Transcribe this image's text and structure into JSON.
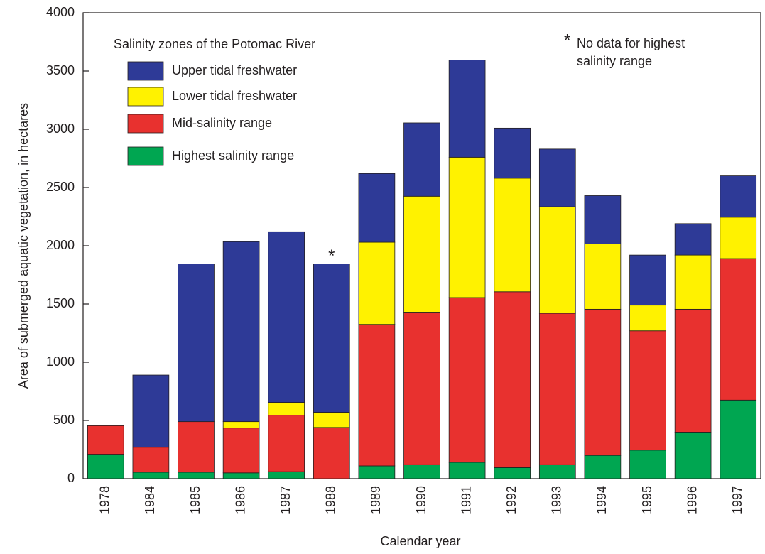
{
  "chart_data": {
    "type": "stacked_bar",
    "x_label": "Calendar year",
    "y_label": "Area of submerged aquatic vegetation, in hectares",
    "legend_title": "Salinity zones of the Potomac River",
    "note_marker": "*",
    "note": [
      "No data for highest",
      "salinity range"
    ],
    "categories": [
      "1978",
      "1984",
      "1985",
      "1986",
      "1987",
      "1988",
      "1989",
      "1990",
      "1991",
      "1992",
      "1993",
      "1994",
      "1995",
      "1996",
      "1997"
    ],
    "series": [
      {
        "name": "Highest salinity range",
        "color": "#00a651",
        "values": [
          210,
          55,
          55,
          50,
          60,
          null,
          110,
          120,
          140,
          95,
          120,
          200,
          245,
          400,
          675
        ]
      },
      {
        "name": "Mid-salinity range",
        "color": "#e8312f",
        "values": [
          245,
          215,
          435,
          385,
          485,
          440,
          1215,
          1310,
          1415,
          1510,
          1300,
          1255,
          1025,
          1055,
          1215
        ]
      },
      {
        "name": "Lower tidal freshwater",
        "color": "#fff200",
        "values": [
          0,
          0,
          0,
          55,
          110,
          130,
          705,
          995,
          1205,
          975,
          915,
          560,
          220,
          465,
          355
        ]
      },
      {
        "name": "Upper tidal freshwater",
        "color": "#2e3a97",
        "values": [
          0,
          620,
          1355,
          1545,
          1465,
          1275,
          590,
          630,
          835,
          430,
          495,
          415,
          430,
          270,
          355
        ]
      }
    ],
    "note_category": 5,
    "ylim": [
      0,
      4000
    ],
    "yticks": [
      0,
      500,
      1000,
      1500,
      2000,
      2500,
      3000,
      3500,
      4000
    ],
    "grid": false
  }
}
